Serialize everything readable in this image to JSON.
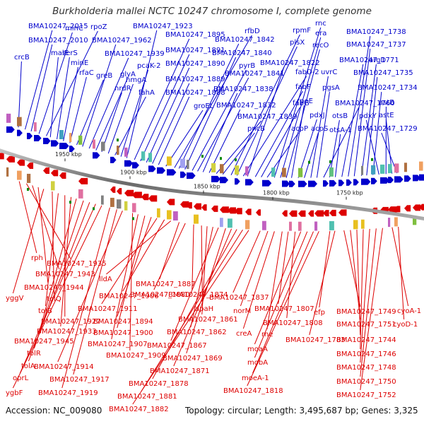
{
  "title": "Burkholderia mallei NCTC 10247 chromosome I, complete genome",
  "footer": {
    "accession": "Accession: NC_009080",
    "stats": "Topology: circular; Length: 3,495,687 bp; Genes: 3,325"
  },
  "colors": {
    "forward": "#0000cc",
    "reverse": "#dd0000",
    "backbone": "#777777",
    "rna": "#008800",
    "scale": "#222222"
  },
  "scale_ticks": [
    "1950 kbp",
    "1900 kbp",
    "1850 kbp",
    "1800 kbp",
    "1750 kbp"
  ],
  "forward_genes": [
    "crcB",
    "BMA10247_2015",
    "BMA10247_2010",
    "minC",
    "rpoZ",
    "malE",
    "serS",
    "minE",
    "rfaC",
    "greB",
    "BMA10247_1962",
    "BMA10247_1939",
    "glyA",
    "nrdR",
    "hmgA",
    "fahA",
    "pcaK-2",
    "BMA10247_1923",
    "BMA10247_1895",
    "BMA10247_1891",
    "BMA10247_1890",
    "BMA10247_1889",
    "BMA10247_1888",
    "groEL",
    "rfbD",
    "BMA10247_1842",
    "BMA10247_1840",
    "pyrB",
    "BMA10247_1841",
    "BMA10247_1838",
    "BMA10247_1832",
    "BMA10247_1839",
    "pncB",
    "rpmF",
    "plsX",
    "fabD-2",
    "BMA10247_1822",
    "fabF",
    "fabG",
    "acpP",
    "rnc",
    "era",
    "recO",
    "rpoE",
    "pdxJ",
    "acpS",
    "uvrC",
    "pgsA",
    "BMA10247_1760",
    "otsB",
    "otsA-1",
    "BMA10247_1771",
    "BMA10247_1738",
    "BMA10247_1737",
    "argD",
    "BMA10247_1735",
    "BMA10247_1734",
    "pdxY",
    "astB",
    "astE",
    "BMA10247_1729"
  ],
  "reverse_genes": [
    "rph",
    "BMA10247_1935",
    "BMA10247_1943",
    "BMA10247_1944",
    "yggV",
    "tolQ",
    "tolB",
    "BMA10247_1927",
    "BMA10247_1933",
    "BMA10247_1945",
    "tolR",
    "tolA",
    "oprL",
    "ygbF",
    "BMA10247_1919",
    "BMA10247_1917",
    "BMA10247_1914",
    "BMA10247_1909",
    "BMA10247_1907",
    "BMA10247_1900",
    "BMA10247_1894",
    "BMA10247_1911",
    "BMA10247_1906",
    "lldA",
    "BMA10247_1887",
    "BMA10247_1880",
    "BMA10247_1874",
    "apaH",
    "BMA10247_1861",
    "BMA10247_1862",
    "BMA10247_1867",
    "BMA10247_1869",
    "BMA10247_1871",
    "BMA10247_1878",
    "BMA10247_1881",
    "BMA10247_1882",
    "BMA10247_1837",
    "norM",
    "creA",
    "rne",
    "BMA10247_1807",
    "BMA10247_1808",
    "moaA",
    "mobA",
    "moeA-1",
    "BMA10247_1818",
    "efp",
    "BMA10247_1783",
    "BMA10247_1749",
    "BMA10247_1751",
    "BMA10247_1744",
    "BMA10247_1746",
    "BMA10247_1748",
    "BMA10247_1750",
    "BMA10247_1752",
    "cyoA-1",
    "cyoD-1"
  ]
}
